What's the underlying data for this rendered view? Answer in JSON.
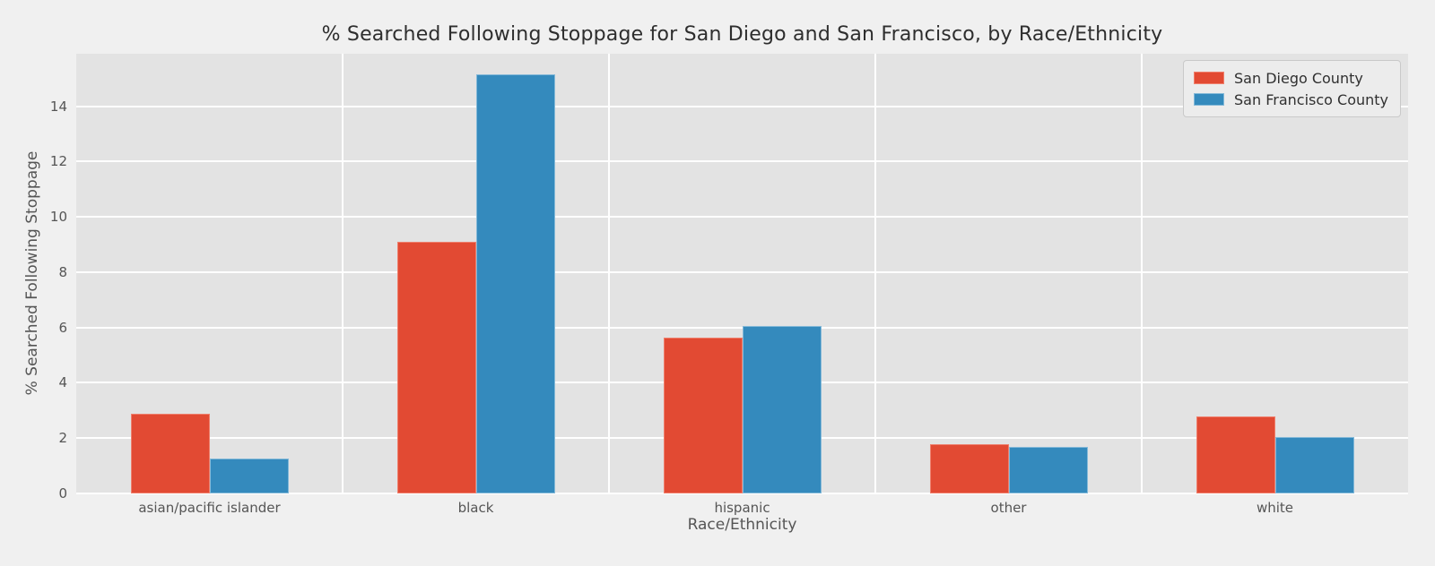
{
  "figure": {
    "background": "#f0f0f0",
    "plot_background": "#e3e3e3",
    "gridline_color": "#ffffff",
    "tick_text_color": "#555555"
  },
  "chart_data": {
    "type": "bar",
    "title": "% Searched Following Stoppage for San Diego and San Francisco, by Race/Ethnicity",
    "xlabel": "Race/Ethnicity",
    "ylabel": "% Searched Following Stoppage",
    "categories": [
      "asian/pacific islander",
      "black",
      "hispanic",
      "other",
      "white"
    ],
    "series": [
      {
        "name": "San Diego County",
        "color": "#e24a33",
        "edge_color": "#ef7f6c",
        "values": [
          2.87,
          9.1,
          5.62,
          1.78,
          2.78
        ]
      },
      {
        "name": "San Francisco County",
        "color": "#348abd",
        "edge_color": "#84b9d8",
        "values": [
          1.25,
          15.15,
          6.07,
          1.67,
          2.03
        ]
      }
    ],
    "ylim": [
      0,
      15.9
    ],
    "yticks": [
      0,
      2,
      4,
      6,
      8,
      10,
      12,
      14
    ],
    "grid": true,
    "legend_position": "upper right"
  }
}
